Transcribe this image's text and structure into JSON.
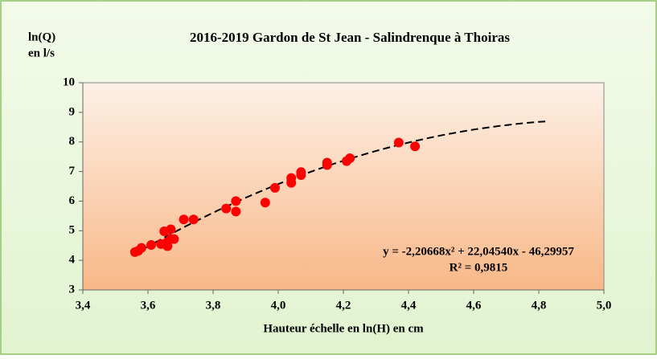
{
  "chart_data": {
    "type": "scatter",
    "title": "2016-2019  Gardon de St Jean - Salindrenque  à Thoiras",
    "ylabel": [
      "ln(Q)",
      "en l/s"
    ],
    "xlabel": "Hauteur échelle en ln(H) en cm",
    "series": [
      {
        "color": "#ff0000",
        "x": [
          3.56,
          3.57,
          3.58,
          3.61,
          3.64,
          3.65,
          3.66,
          3.66,
          3.67,
          3.67,
          3.68,
          3.71,
          3.74,
          3.84,
          3.87,
          3.87,
          3.96,
          3.99,
          4.04,
          4.04,
          4.07,
          4.07,
          4.15,
          4.15,
          4.21,
          4.22,
          4.37,
          4.42
        ],
        "values": [
          4.28,
          4.32,
          4.42,
          4.52,
          4.55,
          4.98,
          4.48,
          4.62,
          5.05,
          4.72,
          4.72,
          5.38,
          5.38,
          5.75,
          6.0,
          5.65,
          5.95,
          6.45,
          6.62,
          6.78,
          6.98,
          6.88,
          7.22,
          7.3,
          7.35,
          7.45,
          7.98,
          7.85
        ]
      }
    ],
    "trendline": {
      "coefficients": [
        -2.20668,
        22.0454,
        -46.29957
      ],
      "x_range": [
        3.56,
        4.82
      ],
      "labels": [
        "y = -2,20668x² + 22,04540x - 46,29957",
        "R² = 0,9815"
      ]
    },
    "xlim": [
      3.4,
      5.0
    ],
    "xticks": [
      {
        "value": 3.4,
        "label": "3,4"
      },
      {
        "value": 3.6,
        "label": "3,6"
      },
      {
        "value": 3.8,
        "label": "3,8"
      },
      {
        "value": 4.0,
        "label": "4,0"
      },
      {
        "value": 4.2,
        "label": "4,2"
      },
      {
        "value": 4.4,
        "label": "4,4"
      },
      {
        "value": 4.6,
        "label": "4,6"
      },
      {
        "value": 4.8,
        "label": "4,8"
      },
      {
        "value": 5.0,
        "label": "5,0"
      }
    ],
    "ylim": [
      3,
      10
    ],
    "yticks": [
      3,
      4,
      5,
      6,
      7,
      8,
      9,
      10
    ]
  }
}
